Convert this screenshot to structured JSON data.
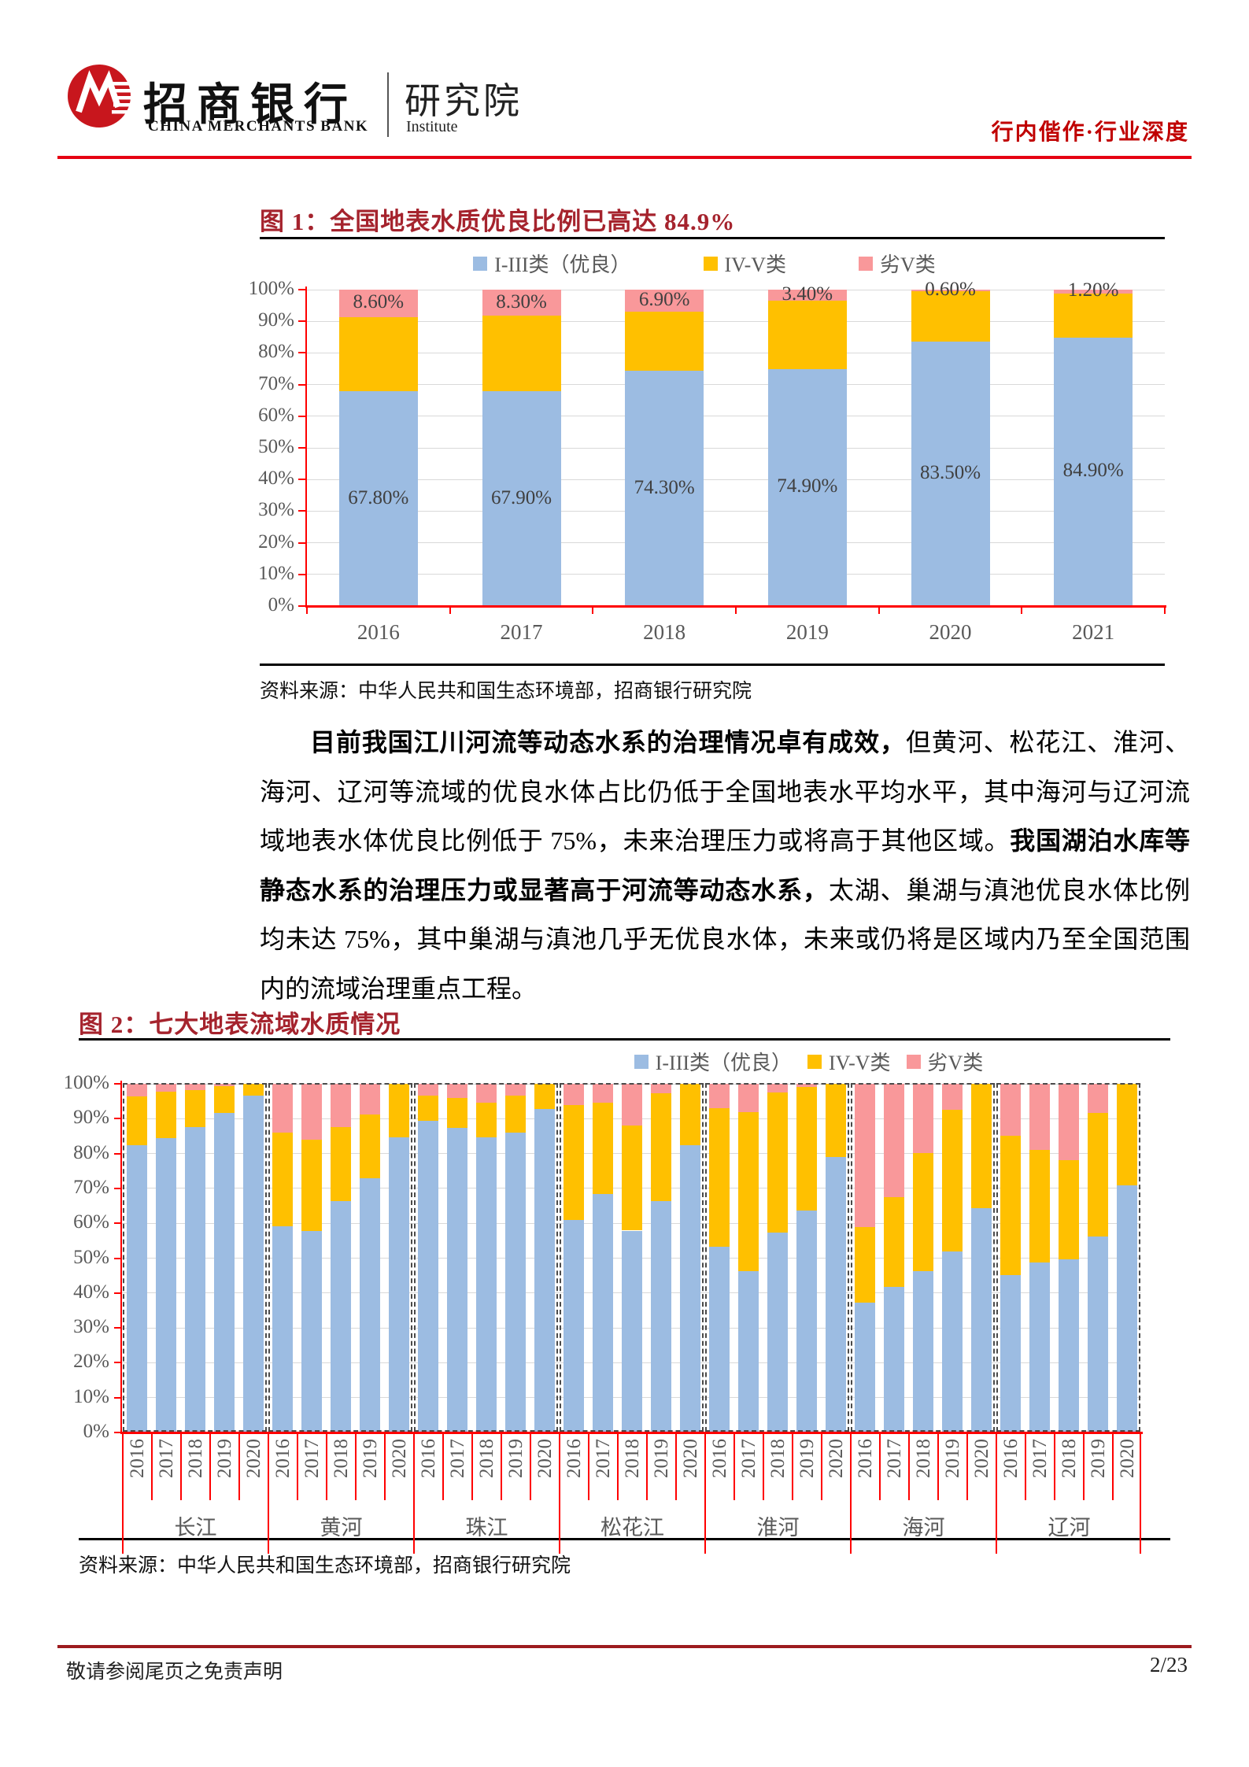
{
  "header": {
    "bank_name_cn": "招商银行",
    "bank_name_en": "CHINA MERCHANTS BANK",
    "institute_cn": "研究院",
    "institute_en": "Institute",
    "report_tag": "行内偕作·行业深度"
  },
  "figure1": {
    "title": "图 1：全国地表水质优良比例已高达 84.9%",
    "source": "资料来源：中华人民共和国生态环境部，招商银行研究院"
  },
  "paragraph": {
    "s1": "目前我国江川河流等动态水系的治理情况卓有成效，",
    "s2": "但黄河、松花江、淮河、海河、辽河等流域的优良水体占比仍低于全国地表水平均水平，其中海河与辽河流域地表水体优良比例低于 75%，未来治理压力或将高于其他区域。",
    "s3": "我国湖泊水库等静态水系的治理压力或显著高于河流等动态水系，",
    "s4": "太湖、巢湖与滇池优良水体比例均未达 75%，其中巢湖与滇池几乎无优良水体，未来或仍将是区域内乃至全国范围内的流域治理重点工程。"
  },
  "figure2": {
    "title": "图 2：七大地表流域水质情况",
    "source": "资料来源：中华人民共和国生态环境部，招商银行研究院"
  },
  "footer": {
    "disclaimer": "敬请参阅尾页之免责声明",
    "page": "2/23"
  },
  "colors": {
    "accent_red": "#C00000",
    "title_red": "#A5232D",
    "header_line_red": "#E60012",
    "footer_line_red": "#9C1C1F",
    "axis_red": "#FF0000",
    "bar_blue": "#9CBCE2",
    "bar_yellow": "#FFC000",
    "bar_pink": "#F9989A",
    "grid_gray": "#D9D9D9",
    "label_gray": "#595959"
  },
  "chart_data": [
    {
      "type": "bar",
      "stacked": true,
      "title": "全国地表水质优良比例已高达84.9%",
      "categories": [
        "2016",
        "2017",
        "2018",
        "2019",
        "2020",
        "2021"
      ],
      "series": [
        {
          "name": "I-III类（优良）",
          "color": "#9CBCE2",
          "values": [
            67.8,
            67.9,
            74.3,
            74.9,
            83.5,
            84.9
          ],
          "labels": [
            "67.80%",
            "67.90%",
            "74.30%",
            "74.90%",
            "83.50%",
            "84.90%"
          ]
        },
        {
          "name": "IV-V类",
          "color": "#FFC000",
          "values": [
            23.6,
            23.8,
            18.8,
            21.7,
            15.9,
            13.9
          ]
        },
        {
          "name": "劣V类",
          "color": "#F9989A",
          "values": [
            8.6,
            8.3,
            6.9,
            3.4,
            0.6,
            1.2
          ],
          "labels": [
            "8.60%",
            "8.30%",
            "6.90%",
            "3.40%",
            "0.60%",
            "1.20%"
          ]
        }
      ],
      "ylim": [
        0,
        100
      ],
      "ytick_step": 10,
      "ytick_format": "percent",
      "grid": true,
      "legend_position": "top"
    },
    {
      "type": "bar",
      "stacked": true,
      "title": "七大地表流域水质情况",
      "series": [
        {
          "name": "I-III类（优良）",
          "color": "#9CBCE2"
        },
        {
          "name": "IV-V类",
          "color": "#FFC000"
        },
        {
          "name": "劣V类",
          "color": "#F9989A"
        }
      ],
      "years": [
        "2016",
        "2017",
        "2018",
        "2019",
        "2020"
      ],
      "groups": [
        {
          "name": "长江",
          "bars": [
            [
              82.3,
              14.2,
              3.5
            ],
            [
              84.5,
              13.3,
              2.2
            ],
            [
              87.5,
              10.7,
              1.8
            ],
            [
              91.7,
              7.7,
              0.6
            ],
            [
              96.7,
              3.3,
              0.0
            ]
          ]
        },
        {
          "name": "黄河",
          "bars": [
            [
              59.1,
              27.0,
              13.9
            ],
            [
              57.7,
              26.2,
              16.1
            ],
            [
              66.4,
              21.2,
              12.4
            ],
            [
              73.0,
              18.2,
              8.8
            ],
            [
              84.7,
              15.3,
              0.0
            ]
          ]
        },
        {
          "name": "珠江",
          "bars": [
            [
              89.4,
              7.2,
              3.4
            ],
            [
              87.3,
              8.7,
              4.0
            ],
            [
              84.6,
              9.9,
              5.5
            ],
            [
              86.1,
              10.5,
              3.4
            ],
            [
              92.7,
              7.3,
              0.0
            ]
          ]
        },
        {
          "name": "松花江",
          "bars": [
            [
              60.9,
              33.1,
              6.0
            ],
            [
              68.4,
              26.1,
              5.5
            ],
            [
              57.9,
              30.1,
              12.0
            ],
            [
              66.4,
              30.8,
              2.8
            ],
            [
              82.4,
              17.6,
              0.0
            ]
          ]
        },
        {
          "name": "淮河",
          "bars": [
            [
              53.3,
              39.7,
              7.0
            ],
            [
              46.2,
              45.7,
              8.1
            ],
            [
              57.4,
              40.2,
              2.4
            ],
            [
              63.7,
              35.3,
              1.0
            ],
            [
              78.9,
              21.1,
              0.0
            ]
          ]
        },
        {
          "name": "海河",
          "bars": [
            [
              37.3,
              21.7,
              41.0
            ],
            [
              41.7,
              25.7,
              32.6
            ],
            [
              46.3,
              33.9,
              19.8
            ],
            [
              51.9,
              40.6,
              7.5
            ],
            [
              64.4,
              35.6,
              0.0
            ]
          ]
        },
        {
          "name": "辽河",
          "bars": [
            [
              45.2,
              39.9,
              14.9
            ],
            [
              48.7,
              32.3,
              19.0
            ],
            [
              49.6,
              28.6,
              21.8
            ],
            [
              56.3,
              35.4,
              8.3
            ],
            [
              70.9,
              29.1,
              0.0
            ]
          ]
        }
      ],
      "ylim": [
        0,
        100
      ],
      "ytick_step": 10,
      "ytick_format": "percent",
      "grid": true,
      "legend_position": "top"
    }
  ]
}
